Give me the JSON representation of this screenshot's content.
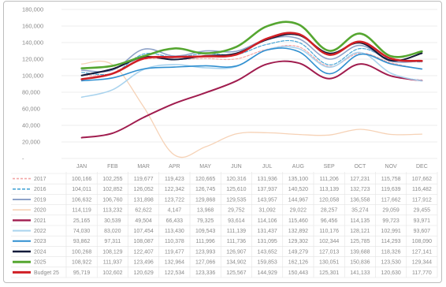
{
  "chart_data": {
    "type": "line",
    "title": "",
    "xlabel": "",
    "ylabel": "",
    "ylim": [
      0,
      180000
    ],
    "y_ticks": [
      "180,000",
      "160,000",
      "140,000",
      "120,000",
      "100,000",
      "80,000",
      "60,000",
      "40,000",
      "20,000",
      "-"
    ],
    "categories": [
      "JAN",
      "FEB",
      "MAR",
      "APR",
      "MAY",
      "JUN",
      "JUL",
      "AUG",
      "SEP",
      "OCT",
      "NOV",
      "DEC"
    ],
    "grid": true,
    "legend_placement": "data-table",
    "series": [
      {
        "name": "2017",
        "color": "#f2a6a6",
        "dash": "3,2",
        "width": 1.2,
        "values": [
          100166,
          102255,
          119677,
          119423,
          120665,
          120316,
          131936,
          135100,
          111206,
          127231,
          115758,
          107662
        ],
        "labels": [
          "100,166",
          "102,255",
          "119,677",
          "119,423",
          "120,665",
          "120,316",
          "131,936",
          "135,100",
          "111,206",
          "127,231",
          "115,758",
          "107,662"
        ]
      },
      {
        "name": "2016",
        "color": "#4aa6d6",
        "dash": "4,2",
        "width": 1.2,
        "values": [
          104011,
          102852,
          126052,
          122342,
          126745,
          125610,
          137937,
          140520,
          113139,
          132723,
          119639,
          116482
        ],
        "labels": [
          "104,011",
          "102,852",
          "126,052",
          "122,342",
          "126,745",
          "125,610",
          "137,937",
          "140,520",
          "113,139",
          "132,723",
          "119,639",
          "116,482"
        ]
      },
      {
        "name": "2019",
        "color": "#8ea2c8",
        "dash": "",
        "width": 1.6,
        "values": [
          106632,
          106760,
          131898,
          123722,
          129868,
          129535,
          143957,
          144967,
          120058,
          136558,
          117662,
          117912
        ],
        "labels": [
          "106,632",
          "106,760",
          "131,898",
          "123,722",
          "129,868",
          "129,535",
          "143,957",
          "144,967",
          "120,058",
          "136,558",
          "117,662",
          "117,912"
        ]
      },
      {
        "name": "2020",
        "color": "#f6d2b6",
        "dash": "",
        "width": 1.3,
        "values": [
          114119,
          113232,
          62622,
          4147,
          13968,
          29752,
          31092,
          29022,
          28257,
          35274,
          29059,
          29455
        ],
        "labels": [
          "114,119",
          "113,232",
          "62,622",
          "4,147",
          "13,968",
          "29,752",
          "31,092",
          "29,022",
          "28,257",
          "35,274",
          "29,059",
          "29,455"
        ]
      },
      {
        "name": "2021",
        "color": "#a01c4e",
        "dash": "",
        "width": 2.0,
        "values": [
          25165,
          30539,
          49504,
          66433,
          79325,
          93614,
          114106,
          115460,
          96456,
          114135,
          99723,
          93971
        ],
        "labels": [
          "25,165",
          "30,539",
          "49,504",
          "66,433",
          "79,325",
          "93,614",
          "114,106",
          "115,460",
          "96,456",
          "114,135",
          "99,723",
          "93,971"
        ]
      },
      {
        "name": "2022",
        "color": "#a9d3ee",
        "dash": "",
        "width": 1.6,
        "values": [
          74030,
          83020,
          107454,
          113430,
          109543,
          111139,
          131437,
          132892,
          110176,
          128121,
          102991,
          93607
        ],
        "labels": [
          "74,030",
          "83,020",
          "107,454",
          "113,430",
          "109,543",
          "111,139",
          "131,437",
          "132,892",
          "110,176",
          "128,121",
          "102,991",
          "93,607"
        ]
      },
      {
        "name": "2023",
        "color": "#2f8fd0",
        "dash": "",
        "width": 1.6,
        "values": [
          93862,
          97311,
          108087,
          110378,
          111996,
          111736,
          131095,
          129302,
          102344,
          125785,
          114293,
          108090
        ],
        "labels": [
          "93,862",
          "97,311",
          "108,087",
          "110,378",
          "111,996",
          "111,736",
          "131,095",
          "129,302",
          "102,344",
          "125,785",
          "114,293",
          "108,090"
        ]
      },
      {
        "name": "2024",
        "color": "#131a3a",
        "dash": "",
        "width": 2.0,
        "values": [
          100268,
          108129,
          122407,
          119477,
          123993,
          126907,
          143652,
          149279,
          127013,
          139688,
          118326,
          127141
        ],
        "labels": [
          "100,268",
          "108,129",
          "122,407",
          "119,477",
          "123,993",
          "126,907",
          "143,652",
          "149,279",
          "127,013",
          "139,688",
          "118,326",
          "127,141"
        ]
      },
      {
        "name": "2025",
        "color": "#55a630",
        "dash": "",
        "width": 2.6,
        "values": [
          108922,
          111937,
          123496,
          132964,
          127066,
          134902,
          159853,
          162126,
          130051,
          150836,
          123530,
          129344
        ],
        "labels": [
          "108,922",
          "111,937",
          "123,496",
          "132,964",
          "127,066",
          "134,902",
          "159,853",
          "162,126",
          "130,051",
          "150,836",
          "123,530",
          "129,344"
        ]
      },
      {
        "name": "Budget 25",
        "color": "#d01f25",
        "dash": "",
        "width": 2.6,
        "values": [
          95719,
          102602,
          120629,
          122534,
          123336,
          125567,
          144929,
          150443,
          125301,
          141133,
          120630,
          117770
        ],
        "labels": [
          "95,719",
          "102,602",
          "120,629",
          "122,534",
          "123,336",
          "125,567",
          "144,929",
          "150,443",
          "125,301",
          "141,133",
          "120,630",
          "117,770"
        ]
      }
    ]
  }
}
